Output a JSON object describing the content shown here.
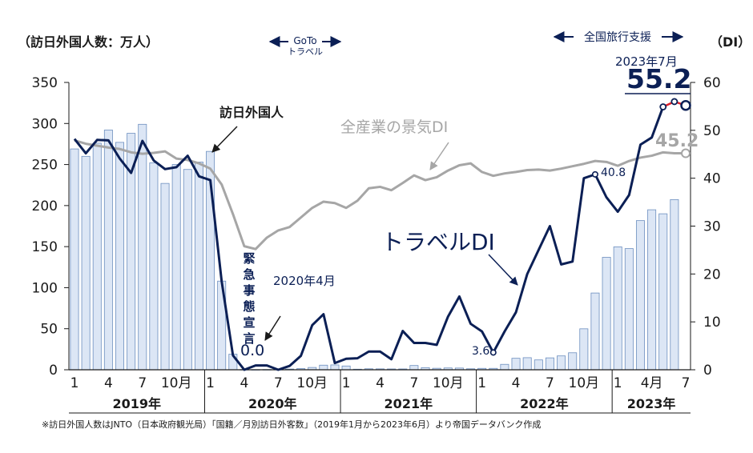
{
  "header": {
    "left_axis_unit": "（訪日外国人数：万人）",
    "right_axis_unit": "（DI）",
    "goto_line1": "GoTo",
    "goto_line2": "トラベル",
    "nationwide_support": "全国旅行支援"
  },
  "footnote": "※訪日外国人数はJNTO（日本政府観光局）「国籍／月別訪日外客数」（2019年1月から2023年6月）より帝国データバンク作成",
  "annotations": {
    "visitors_label": "訪日外国人",
    "all_industries_label": "全産業の景気DI",
    "travel_label": "トラベルDI",
    "emergency_label": "緊急事態宣言",
    "april_2020_label": "2020年4月",
    "zero_value": "0.0",
    "value_3_6": "3.6",
    "value_40_8": "40.8",
    "latest_month_label": "2023年7月",
    "latest_travel_value": "55.2",
    "latest_all_value": "45.2"
  },
  "chart_data": {
    "type": "bar+line",
    "x_months": [
      "2019-01",
      "2019-02",
      "2019-03",
      "2019-04",
      "2019-05",
      "2019-06",
      "2019-07",
      "2019-08",
      "2019-09",
      "2019-10",
      "2019-11",
      "2019-12",
      "2020-01",
      "2020-02",
      "2020-03",
      "2020-04",
      "2020-05",
      "2020-06",
      "2020-07",
      "2020-08",
      "2020-09",
      "2020-10",
      "2020-11",
      "2020-12",
      "2021-01",
      "2021-02",
      "2021-03",
      "2021-04",
      "2021-05",
      "2021-06",
      "2021-07",
      "2021-08",
      "2021-09",
      "2021-10",
      "2021-11",
      "2021-12",
      "2022-01",
      "2022-02",
      "2022-03",
      "2022-04",
      "2022-05",
      "2022-06",
      "2022-07",
      "2022-08",
      "2022-09",
      "2022-10",
      "2022-11",
      "2022-12",
      "2023-01",
      "2023-02",
      "2023-03",
      "2023-04",
      "2023-05",
      "2023-06",
      "2023-07"
    ],
    "x_tick_labels": [
      {
        "month": "2019-01",
        "label": "1"
      },
      {
        "month": "2019-04",
        "label": "4"
      },
      {
        "month": "2019-07",
        "label": "7"
      },
      {
        "month": "2019-10",
        "label": "10月"
      },
      {
        "month": "2020-01",
        "label": "1"
      },
      {
        "month": "2020-04",
        "label": "4"
      },
      {
        "month": "2020-07",
        "label": "7"
      },
      {
        "month": "2020-10",
        "label": "10月"
      },
      {
        "month": "2021-01",
        "label": "1"
      },
      {
        "month": "2021-04",
        "label": "4"
      },
      {
        "month": "2021-07",
        "label": "7"
      },
      {
        "month": "2021-10",
        "label": "10月"
      },
      {
        "month": "2022-01",
        "label": "1"
      },
      {
        "month": "2022-04",
        "label": "4"
      },
      {
        "month": "2022-07",
        "label": "7"
      },
      {
        "month": "2022-10",
        "label": "10月"
      },
      {
        "month": "2023-01",
        "label": "1"
      },
      {
        "month": "2023-04",
        "label": "4月"
      },
      {
        "month": "2023-07",
        "label": "7"
      }
    ],
    "year_labels": [
      "2019年",
      "2020年",
      "2021年",
      "2022年",
      "2023年"
    ],
    "left_axis": {
      "ylim": [
        0,
        350
      ],
      "ticks": [
        "0",
        "50",
        "100",
        "150",
        "200",
        "250",
        "300",
        "350"
      ]
    },
    "right_axis": {
      "ylim": [
        0,
        60
      ],
      "ticks": [
        "0",
        "10",
        "20",
        "30",
        "40",
        "50",
        "60"
      ]
    },
    "series": [
      {
        "name": "訪日外国人",
        "kind": "bar",
        "axis": "left",
        "color": "#dce6f5",
        "values": [
          269,
          260,
          276,
          292,
          277,
          288,
          299,
          252,
          227,
          250,
          244,
          253,
          266,
          108,
          19,
          0.3,
          0.2,
          0.3,
          0.4,
          0.9,
          1.4,
          2.8,
          5.6,
          5.9,
          4.6,
          0.7,
          1.2,
          1.1,
          1.0,
          1.0,
          5.2,
          2.6,
          1.8,
          2.2,
          2.1,
          1.2,
          1.7,
          1.7,
          6.6,
          14.0,
          14.7,
          12.0,
          14.5,
          16.9,
          20.7,
          49.9,
          93.5,
          137.0,
          149.7,
          147.6,
          181.7,
          194.9,
          190.0,
          207.3,
          null
        ]
      },
      {
        "name": "トラベルDI",
        "kind": "line",
        "axis": "right",
        "color": "#0b1f55",
        "values": [
          48.2,
          45.2,
          48.0,
          47.9,
          44.1,
          41.1,
          47.8,
          43.7,
          41.9,
          42.3,
          44.7,
          40.4,
          39.6,
          18.5,
          3.0,
          0.0,
          0.9,
          0.9,
          0.0,
          0.8,
          2.9,
          9.3,
          11.6,
          1.4,
          2.3,
          2.4,
          3.8,
          3.8,
          2.2,
          8.1,
          5.6,
          5.6,
          5.2,
          11.1,
          15.3,
          9.6,
          8.0,
          3.6,
          8.0,
          12.0,
          20.0,
          25.0,
          30.0,
          22.0,
          22.6,
          40.0,
          40.8,
          36.0,
          33.0,
          36.5,
          47.0,
          48.5,
          54.9,
          56.0,
          55.2
        ]
      },
      {
        "name": "全産業の景気DI",
        "kind": "line",
        "axis": "right",
        "color": "#a6a6a6",
        "values": [
          47.9,
          47.2,
          46.8,
          46.4,
          46.1,
          45.4,
          45.1,
          45.3,
          45.6,
          44.1,
          43.8,
          43.1,
          42.0,
          38.7,
          32.5,
          25.8,
          25.2,
          27.6,
          29.1,
          29.8,
          31.8,
          33.8,
          35.1,
          34.8,
          33.8,
          35.3,
          37.9,
          38.2,
          37.5,
          39.0,
          40.6,
          39.6,
          40.2,
          41.6,
          42.7,
          43.1,
          41.3,
          40.5,
          41.0,
          41.3,
          41.7,
          41.8,
          41.6,
          42.0,
          42.5,
          43.0,
          43.6,
          43.4,
          42.6,
          43.6,
          44.3,
          44.7,
          45.4,
          45.2,
          45.2
        ]
      }
    ],
    "emergency_declaration_month": "2020-04",
    "goto_travel_span": [
      "2020-07",
      "2020-12"
    ],
    "nationwide_support_span": [
      "2022-10",
      "2023-07"
    ]
  }
}
